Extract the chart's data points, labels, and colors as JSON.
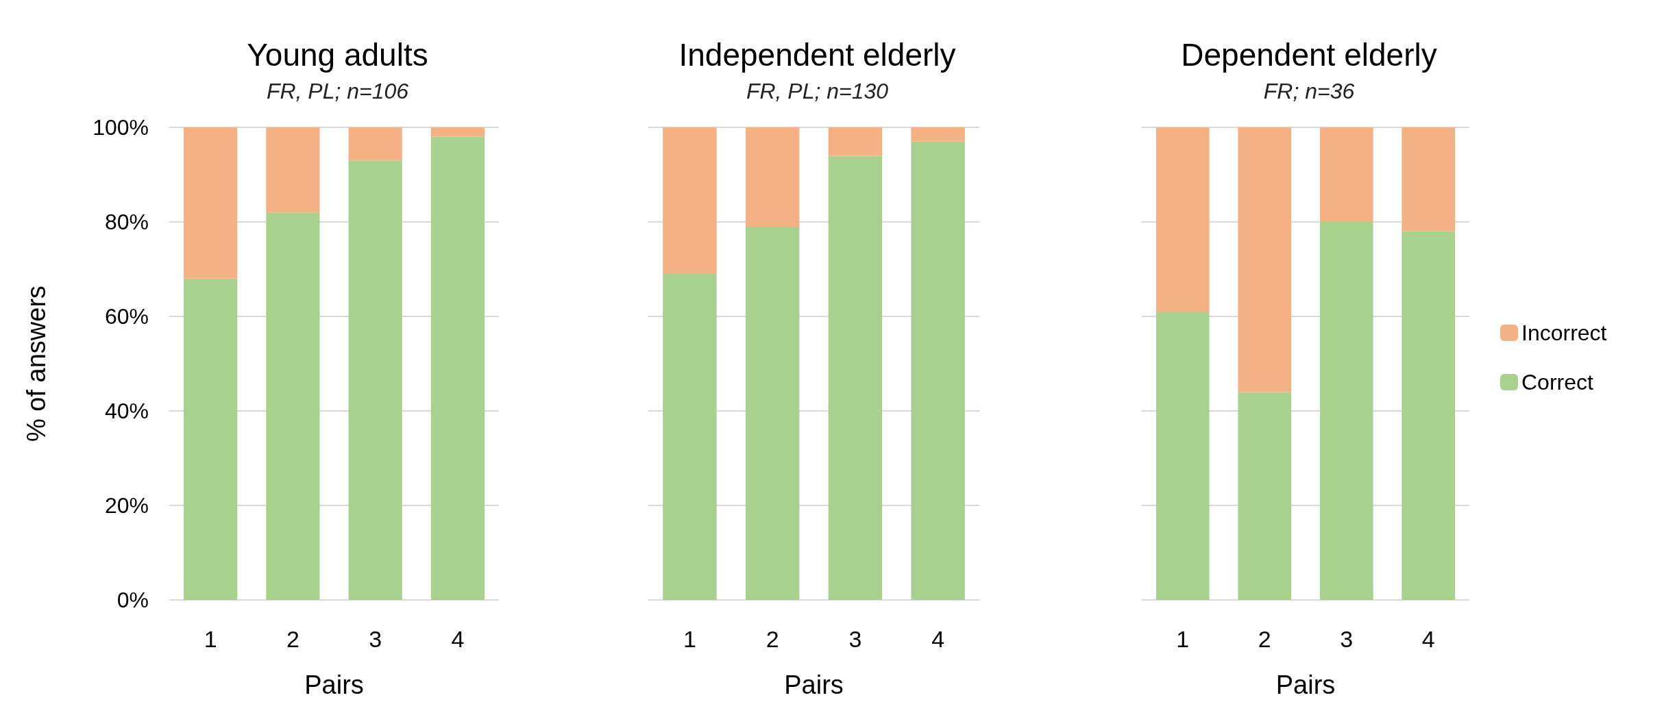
{
  "chart_data": [
    {
      "type": "bar",
      "title": "Young adults",
      "subtitle": "FR, PL; n=106",
      "xlabel": "Pairs",
      "ylabel": "% of answers",
      "categories": [
        "1",
        "2",
        "3",
        "4"
      ],
      "stacked": true,
      "series": [
        {
          "color": "#a9d18e",
          "values": [
            68,
            82,
            93,
            98
          ]
        },
        {
          "color": "#f4b183",
          "values": [
            32,
            18,
            7,
            2
          ]
        }
      ],
      "ylim": [
        0,
        100
      ],
      "yticks": [
        {
          "value": 0,
          "label": "0%"
        },
        {
          "value": 20,
          "label": "20%"
        },
        {
          "value": 40,
          "label": "40%"
        },
        {
          "value": 60,
          "label": "60%"
        },
        {
          "value": 80,
          "label": "80%"
        },
        {
          "value": 100,
          "label": "100%"
        }
      ],
      "grid": "y"
    },
    {
      "type": "bar",
      "title": "Independent elderly",
      "subtitle": "FR, PL; n=130",
      "xlabel": "Pairs",
      "categories": [
        "1",
        "2",
        "3",
        "4"
      ],
      "stacked": true,
      "series": [
        {
          "color": "#a9d18e",
          "values": [
            69,
            79,
            94,
            97
          ]
        },
        {
          "color": "#f4b183",
          "values": [
            31,
            21,
            6,
            3
          ]
        }
      ],
      "ylim": [
        0,
        100
      ],
      "yticks": [
        0,
        20,
        40,
        60,
        80,
        100
      ],
      "grid": "y",
      "tick_labels": "x"
    },
    {
      "type": "bar",
      "title": "Dependent elderly",
      "subtitle": "FR; n=36",
      "xlabel": "Pairs",
      "categories": [
        "1",
        "2",
        "3",
        "4"
      ],
      "stacked": true,
      "series": [
        {
          "name": "Correct",
          "color": "#a9d18e",
          "values": [
            61,
            44,
            80,
            78
          ]
        },
        {
          "name": "Incorrect",
          "color": "#f4b183",
          "values": [
            39,
            56,
            20,
            22
          ]
        }
      ],
      "ylim": [
        0,
        100
      ],
      "yticks": [
        0,
        20,
        40,
        60,
        80,
        100
      ],
      "grid": "y",
      "tick_labels": "x",
      "legend": "right"
    }
  ]
}
